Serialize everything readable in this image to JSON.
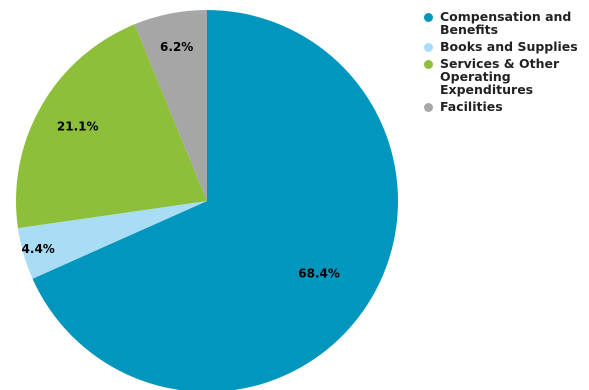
{
  "chart_data": {
    "type": "pie",
    "title": "",
    "slices": [
      {
        "label": "Compensation and Benefits",
        "value": 68.4,
        "display": "68.4%",
        "color": "#0096BE"
      },
      {
        "label": "Books and Supplies",
        "value": 4.4,
        "display": "4.4%",
        "color": "#A9DDF5"
      },
      {
        "label": "Services & Other Operating Expenditures",
        "value": 21.1,
        "display": "21.1%",
        "color": "#8DBF3A"
      },
      {
        "label": "Facilities",
        "value": 6.2,
        "display": "6.2%",
        "color": "#A6A6A6"
      }
    ],
    "start": "12 o'clock",
    "direction": "clockwise",
    "legend_position": "top-right"
  },
  "legend": {
    "items": [
      {
        "label": "Compensation and Benefits",
        "color": "#0096BE"
      },
      {
        "label": "Books and Supplies",
        "color": "#A9DDF5"
      },
      {
        "label": "Services & Other Operating Expenditures",
        "color": "#8DBF3A"
      },
      {
        "label": "Facilities",
        "color": "#A6A6A6"
      }
    ]
  }
}
